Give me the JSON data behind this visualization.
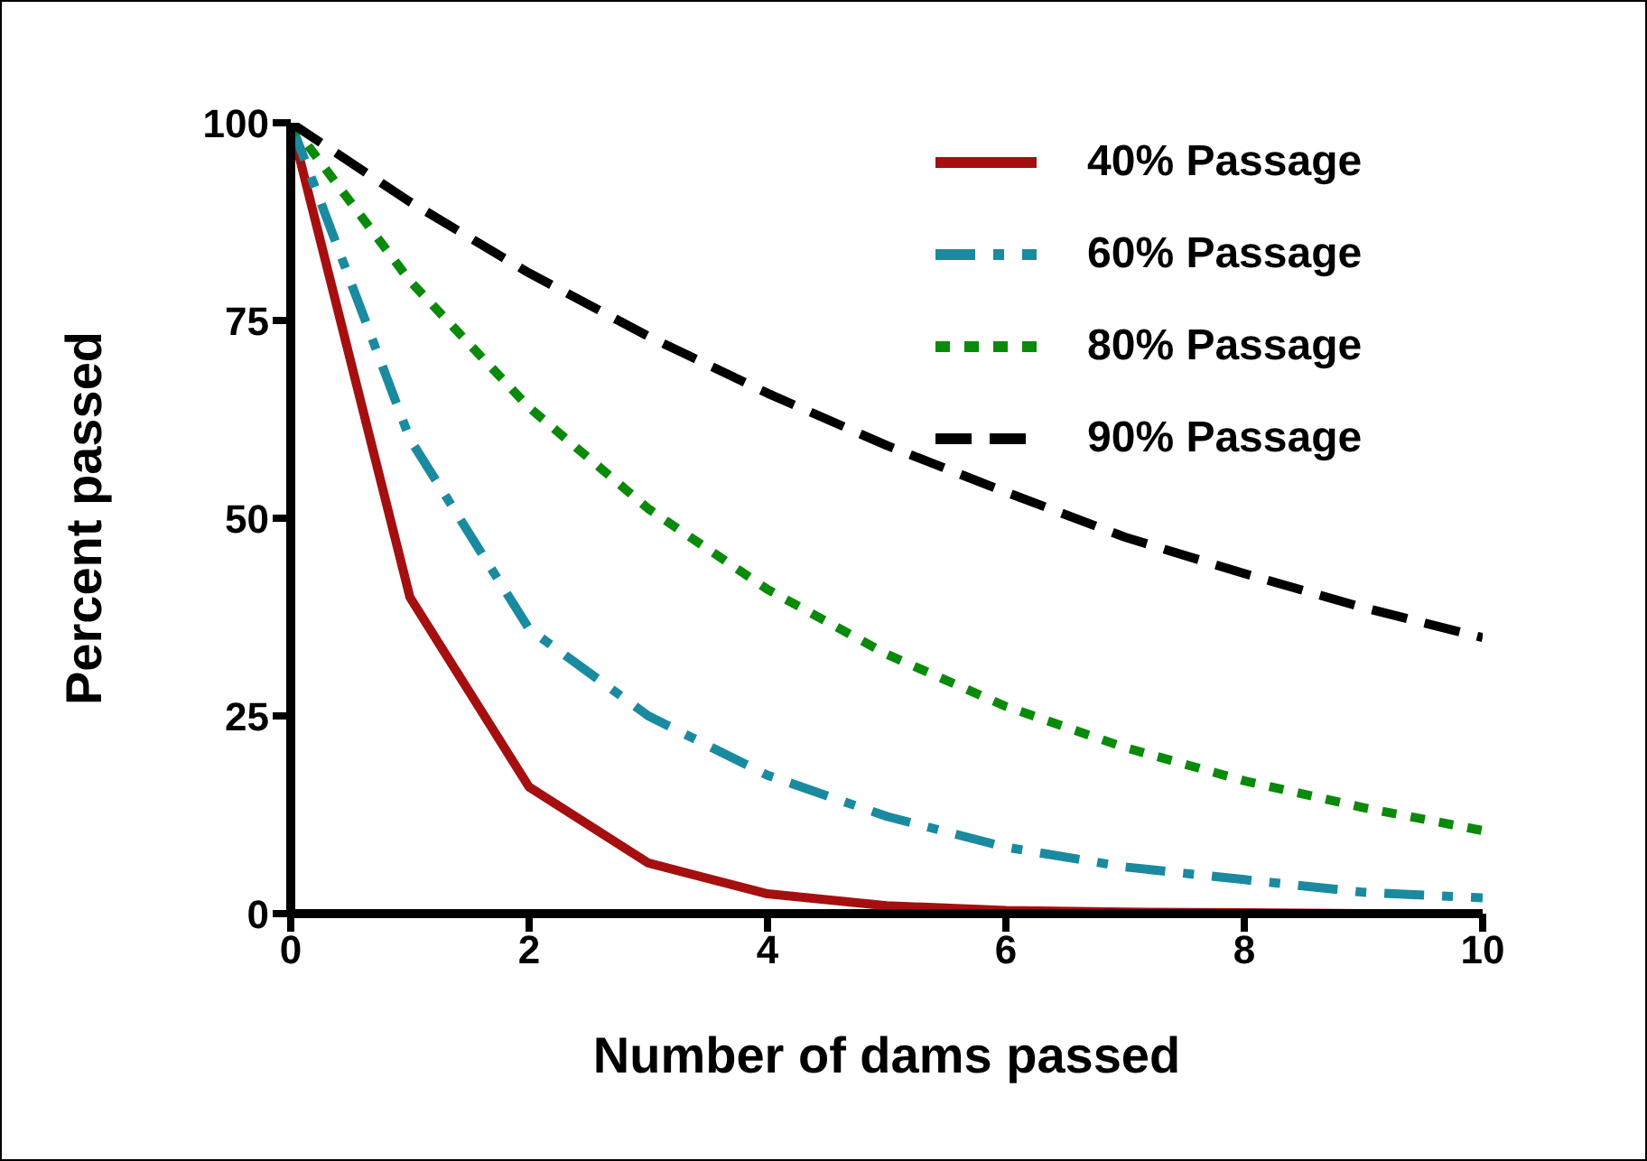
{
  "chart_data": {
    "type": "line",
    "xlabel": "Number of dams passed",
    "ylabel": "Percent passed",
    "x": [
      0,
      1,
      2,
      3,
      4,
      5,
      6,
      7,
      8,
      9,
      10
    ],
    "series": [
      {
        "name": "40% Passage",
        "color": "#a50f0f",
        "line_style": "solid",
        "values": [
          100,
          40,
          16,
          6.4,
          2.5,
          1,
          0.4,
          0.2,
          0.1,
          0,
          0
        ]
      },
      {
        "name": "60% Passage",
        "color": "#1a8aa0",
        "line_style": "dashdot",
        "values": [
          100,
          60,
          36,
          25,
          17.5,
          12.3,
          8.4,
          5.9,
          4.3,
          2.7,
          2
        ]
      },
      {
        "name": "80% Passage",
        "color": "#0a8a0a",
        "line_style": "dotted",
        "values": [
          100,
          80,
          64,
          51.2,
          41,
          32.8,
          26.2,
          21,
          16.8,
          13.4,
          10.5
        ]
      },
      {
        "name": "90% Passage",
        "color": "#000000",
        "line_style": "dashed",
        "values": [
          100,
          90,
          81,
          73,
          65.8,
          59.2,
          53.3,
          47.6,
          43,
          38.7,
          34.9
        ]
      }
    ],
    "xlim": [
      0,
      10
    ],
    "xticks": [
      0,
      2,
      4,
      6,
      8,
      10
    ],
    "ylim": [
      0,
      100
    ],
    "yticks": [
      0,
      25,
      50,
      75,
      100
    ],
    "grid": false,
    "legend": "top right"
  }
}
